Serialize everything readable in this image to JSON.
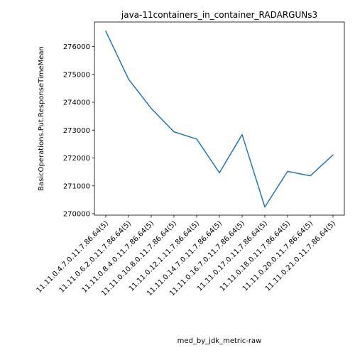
{
  "chart_data": {
    "type": "line",
    "title": "java-11containers_in_container_RADARGUNs3",
    "xlabel": "med_by_jdk_metric-raw",
    "ylabel": "BasicOperations.Put.ResponseTimeMean",
    "categories": [
      "11.11.0.4.7.0.11.7.86.64(5)",
      "11.11.0.6.2.0.11.7.86.64(5)",
      "11.11.0.8.4.0.11.7.86.64(5)",
      "11.11.0.10.8.0.11.7.86.64(5)",
      "11.11.0.12.1.11.7.86.64(5)",
      "11.11.0.14.7.0.11.7.86.64(5)",
      "11.11.0.16.7.0.11.7.86.64(5)",
      "11.11.0.17.0.11.7.86.64(5)",
      "11.11.0.18.0.11.7.86.64(5)",
      "11.11.0.20.0.11.7.86.64(5)",
      "11.11.0.21.0.11.7.86.64(5)"
    ],
    "values": [
      276550,
      274830,
      273780,
      272940,
      272680,
      271470,
      272840,
      270240,
      271520,
      271360,
      272110
    ],
    "yticks": [
      270000,
      271000,
      272000,
      273000,
      274000,
      275000,
      276000
    ],
    "ytick_labels": [
      "270000",
      "271000",
      "272000",
      "273000",
      "274000",
      "275000",
      "276000"
    ],
    "ylim": [
      269950,
      276880
    ],
    "color": "#1f77b4",
    "grid": false,
    "legend": "none"
  }
}
